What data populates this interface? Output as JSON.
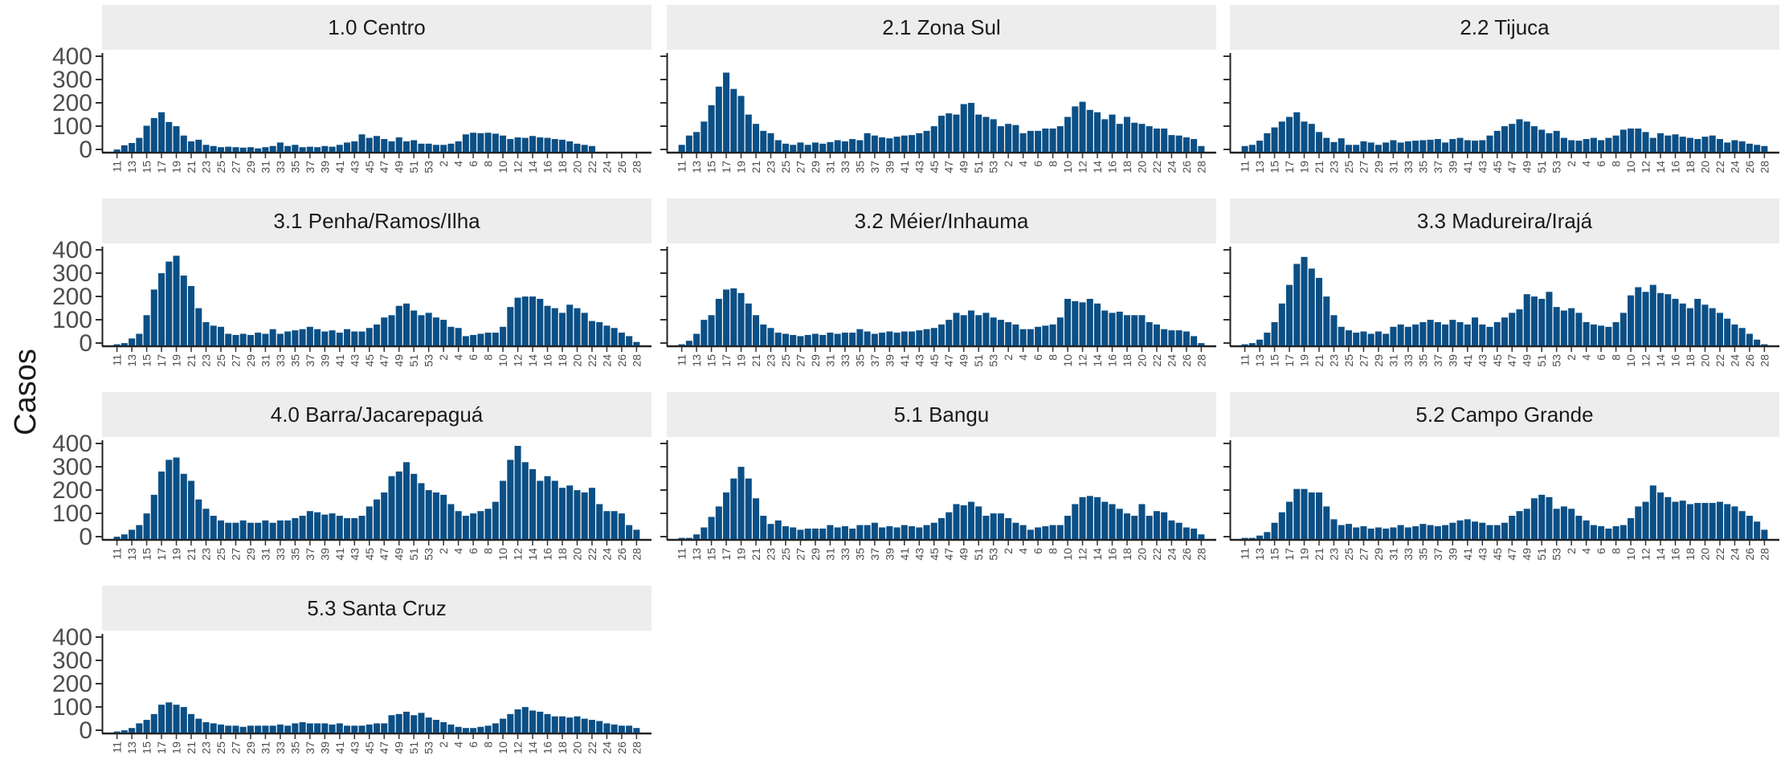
{
  "chart_data": {
    "type": "bar",
    "layout": "facet-wrap",
    "ncol": 3,
    "ylabel": "Casos",
    "xlabel": "",
    "ylim": [
      0,
      400
    ],
    "yticks": [
      0,
      100,
      200,
      300,
      400
    ],
    "x_tick_labels": [
      "11",
      "13",
      "15",
      "17",
      "19",
      "21",
      "23",
      "25",
      "27",
      "29",
      "31",
      "33",
      "35",
      "37",
      "39",
      "41",
      "43",
      "45",
      "47",
      "49",
      "51",
      "53",
      "2",
      "4",
      "6",
      "8",
      "10",
      "12",
      "14",
      "16",
      "18",
      "20",
      "22",
      "24",
      "26",
      "28"
    ],
    "x": [
      "2020-11",
      "2020-12",
      "2020-13",
      "2020-14",
      "2020-15",
      "2020-16",
      "2020-17",
      "2020-18",
      "2020-19",
      "2020-20",
      "2020-21",
      "2020-22",
      "2020-23",
      "2020-24",
      "2020-25",
      "2020-26",
      "2020-27",
      "2020-28",
      "2020-29",
      "2020-30",
      "2020-31",
      "2020-32",
      "2020-33",
      "2020-34",
      "2020-35",
      "2020-36",
      "2020-37",
      "2020-38",
      "2020-39",
      "2020-40",
      "2020-41",
      "2020-42",
      "2020-43",
      "2020-44",
      "2020-45",
      "2020-46",
      "2020-47",
      "2020-48",
      "2020-49",
      "2020-50",
      "2020-51",
      "2020-52",
      "2020-53",
      "2021-1",
      "2021-2",
      "2021-3",
      "2021-4",
      "2021-5",
      "2021-6",
      "2021-7",
      "2021-8",
      "2021-9",
      "2021-10",
      "2021-11",
      "2021-12",
      "2021-13",
      "2021-14",
      "2021-15",
      "2021-16",
      "2021-17",
      "2021-18",
      "2021-19",
      "2021-20",
      "2021-21",
      "2021-22",
      "2021-23",
      "2021-24",
      "2021-25",
      "2021-26",
      "2021-27",
      "2021-28"
    ],
    "bar_color": "#0b4f85",
    "grid": false,
    "series": [
      {
        "name": "1.0 Centro",
        "values": [
          10,
          28,
          38,
          60,
          112,
          145,
          170,
          128,
          110,
          70,
          45,
          52,
          30,
          25,
          20,
          22,
          20,
          18,
          20,
          15,
          20,
          25,
          40,
          25,
          30,
          20,
          22,
          20,
          25,
          22,
          30,
          40,
          45,
          75,
          60,
          68,
          55,
          45,
          62,
          45,
          50,
          35,
          35,
          30,
          30,
          35,
          45,
          75,
          82,
          80,
          82,
          78,
          70,
          55,
          62,
          60,
          68,
          62,
          60,
          55,
          52,
          45,
          35,
          30,
          25,
          0,
          0,
          0,
          0,
          0,
          0
        ]
      },
      {
        "name": "2.1 Zona Sul",
        "values": [
          30,
          70,
          85,
          130,
          200,
          280,
          340,
          270,
          240,
          160,
          120,
          90,
          80,
          50,
          35,
          30,
          40,
          30,
          40,
          35,
          42,
          50,
          45,
          55,
          50,
          80,
          70,
          62,
          58,
          65,
          70,
          72,
          80,
          90,
          110,
          155,
          165,
          160,
          205,
          210,
          160,
          150,
          140,
          110,
          120,
          115,
          80,
          90,
          90,
          100,
          100,
          110,
          150,
          195,
          215,
          180,
          170,
          140,
          160,
          120,
          150,
          125,
          120,
          110,
          100,
          100,
          72,
          70,
          62,
          55,
          25
        ]
      },
      {
        "name": "2.2 Tijuca",
        "values": [
          25,
          30,
          48,
          80,
          105,
          130,
          150,
          170,
          130,
          120,
          85,
          60,
          42,
          58,
          30,
          30,
          45,
          40,
          30,
          40,
          50,
          40,
          45,
          48,
          50,
          52,
          55,
          40,
          55,
          60,
          50,
          48,
          50,
          70,
          90,
          110,
          120,
          140,
          130,
          110,
          95,
          80,
          90,
          60,
          50,
          48,
          55,
          60,
          50,
          60,
          70,
          95,
          100,
          100,
          85,
          60,
          80,
          70,
          75,
          65,
          60,
          55,
          65,
          70,
          55,
          40,
          50,
          45,
          35,
          30,
          25
        ]
      },
      {
        "name": "3.1 Penha/Ramos/Ilha",
        "values": [
          5,
          10,
          30,
          50,
          130,
          240,
          310,
          360,
          385,
          300,
          255,
          160,
          100,
          85,
          80,
          50,
          45,
          50,
          45,
          55,
          50,
          70,
          50,
          60,
          65,
          70,
          80,
          70,
          60,
          65,
          55,
          70,
          60,
          60,
          75,
          90,
          120,
          130,
          170,
          180,
          150,
          130,
          140,
          120,
          110,
          80,
          75,
          40,
          45,
          50,
          55,
          55,
          80,
          165,
          205,
          210,
          210,
          200,
          170,
          160,
          140,
          175,
          160,
          140,
          105,
          100,
          85,
          75,
          55,
          40,
          15
        ]
      },
      {
        "name": "3.2 Méier/Inhauma",
        "values": [
          5,
          20,
          50,
          110,
          130,
          200,
          240,
          245,
          225,
          180,
          130,
          90,
          75,
          55,
          50,
          45,
          40,
          45,
          50,
          45,
          55,
          50,
          55,
          55,
          70,
          60,
          50,
          55,
          60,
          55,
          60,
          60,
          65,
          70,
          75,
          90,
          110,
          140,
          130,
          150,
          130,
          140,
          120,
          110,
          100,
          90,
          70,
          70,
          80,
          85,
          90,
          120,
          200,
          190,
          185,
          200,
          180,
          150,
          140,
          145,
          130,
          130,
          130,
          100,
          90,
          70,
          65,
          65,
          60,
          40,
          10
        ]
      },
      {
        "name": "3.3 Madureira/Irajá",
        "values": [
          5,
          10,
          25,
          55,
          100,
          180,
          260,
          350,
          380,
          330,
          290,
          210,
          130,
          80,
          65,
          55,
          60,
          50,
          60,
          50,
          80,
          90,
          80,
          90,
          100,
          110,
          100,
          90,
          110,
          100,
          90,
          120,
          90,
          80,
          100,
          120,
          140,
          155,
          220,
          210,
          200,
          230,
          165,
          150,
          160,
          140,
          100,
          90,
          85,
          80,
          100,
          140,
          215,
          250,
          230,
          260,
          225,
          220,
          200,
          180,
          160,
          200,
          175,
          160,
          140,
          115,
          90,
          75,
          50,
          25,
          5
        ]
      },
      {
        "name": "4.0 Barra/Jacarepaguá",
        "values": [
          10,
          20,
          40,
          60,
          110,
          190,
          290,
          340,
          350,
          280,
          250,
          170,
          130,
          100,
          80,
          70,
          70,
          80,
          70,
          70,
          80,
          70,
          80,
          80,
          90,
          100,
          120,
          115,
          105,
          110,
          100,
          90,
          90,
          100,
          140,
          170,
          200,
          270,
          290,
          330,
          280,
          240,
          210,
          200,
          190,
          150,
          120,
          100,
          110,
          120,
          130,
          160,
          250,
          340,
          400,
          330,
          300,
          250,
          270,
          250,
          220,
          230,
          210,
          200,
          220,
          150,
          120,
          120,
          110,
          60,
          40
        ]
      },
      {
        "name": "5.1 Bangu",
        "values": [
          5,
          5,
          20,
          50,
          95,
          140,
          200,
          260,
          310,
          260,
          175,
          100,
          65,
          80,
          55,
          50,
          40,
          45,
          45,
          45,
          60,
          50,
          55,
          45,
          60,
          60,
          70,
          50,
          55,
          50,
          60,
          55,
          50,
          60,
          70,
          90,
          115,
          150,
          145,
          160,
          140,
          100,
          110,
          110,
          90,
          70,
          60,
          40,
          50,
          55,
          60,
          60,
          100,
          150,
          180,
          185,
          180,
          160,
          150,
          130,
          110,
          100,
          150,
          100,
          120,
          115,
          80,
          70,
          50,
          45,
          20
        ]
      },
      {
        "name": "5.2 Campo Grande",
        "values": [
          5,
          5,
          15,
          30,
          70,
          115,
          160,
          215,
          215,
          200,
          200,
          140,
          85,
          60,
          65,
          50,
          55,
          45,
          50,
          45,
          50,
          60,
          50,
          55,
          65,
          60,
          55,
          60,
          70,
          80,
          85,
          75,
          70,
          60,
          60,
          70,
          100,
          120,
          130,
          175,
          190,
          180,
          130,
          140,
          130,
          100,
          80,
          60,
          55,
          45,
          55,
          60,
          90,
          140,
          160,
          230,
          200,
          180,
          160,
          165,
          150,
          155,
          155,
          155,
          160,
          150,
          140,
          120,
          100,
          75,
          40
        ]
      },
      {
        "name": "5.3 Santa Cruz",
        "values": [
          5,
          10,
          20,
          40,
          55,
          80,
          120,
          130,
          120,
          110,
          80,
          60,
          45,
          40,
          35,
          30,
          30,
          25,
          30,
          30,
          30,
          30,
          35,
          30,
          40,
          45,
          40,
          40,
          40,
          35,
          40,
          30,
          30,
          30,
          35,
          40,
          40,
          75,
          80,
          90,
          75,
          85,
          65,
          55,
          45,
          35,
          25,
          20,
          20,
          25,
          30,
          40,
          60,
          80,
          100,
          110,
          95,
          90,
          80,
          70,
          70,
          65,
          70,
          60,
          55,
          50,
          40,
          35,
          30,
          30,
          20
        ]
      }
    ]
  }
}
